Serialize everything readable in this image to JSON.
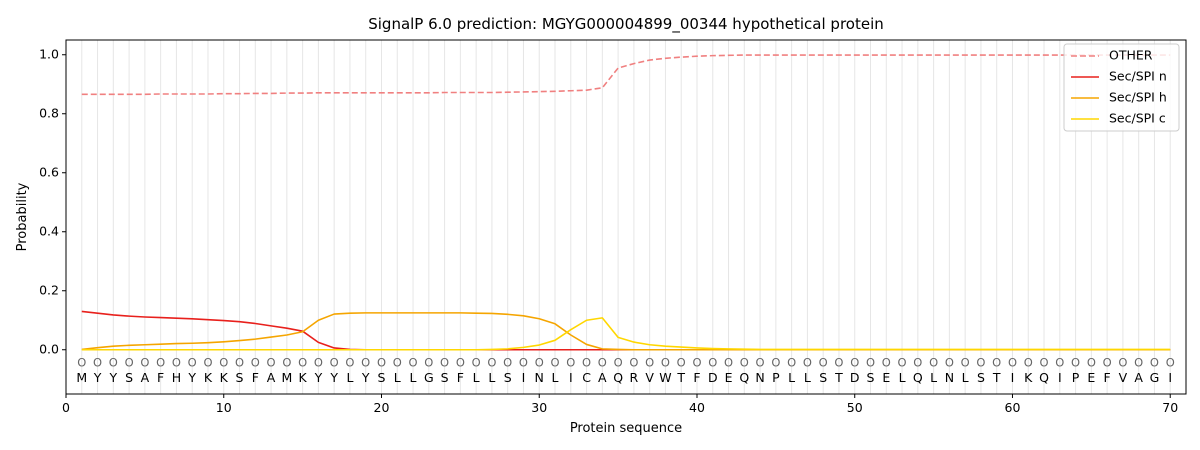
{
  "chart_data": {
    "type": "line",
    "title": "SignalP 6.0 prediction: MGYG000004899_00344 hypothetical protein",
    "xlabel": "Protein sequence",
    "ylabel": "Probability",
    "xlim": [
      0,
      71
    ],
    "ylim": [
      -0.15,
      1.05
    ],
    "xticks": [
      0,
      10,
      20,
      30,
      40,
      50,
      60,
      70
    ],
    "yticks": [
      0.0,
      0.2,
      0.4,
      0.6,
      0.8,
      1.0
    ],
    "ytick_labels": [
      "0.0",
      "0.2",
      "0.4",
      "0.6",
      "0.8",
      "1.0"
    ],
    "legend_position": "top-right",
    "sequence": [
      "M",
      "Y",
      "Y",
      "S",
      "A",
      "F",
      "H",
      "Y",
      "K",
      "K",
      "S",
      "F",
      "A",
      "M",
      "K",
      "Y",
      "Y",
      "L",
      "Y",
      "S",
      "L",
      "L",
      "G",
      "S",
      "F",
      "L",
      "L",
      "S",
      "I",
      "N",
      "L",
      "I",
      "C",
      "A",
      "Q",
      "R",
      "V",
      "W",
      "T",
      "F",
      "D",
      "E",
      "Q",
      "N",
      "P",
      "L",
      "L",
      "S",
      "T",
      "D",
      "S",
      "E",
      "L",
      "Q",
      "L",
      "N",
      "L",
      "S",
      "T",
      "I",
      "K",
      "Q",
      "I",
      "P",
      "E",
      "F",
      "V",
      "A",
      "G",
      "I"
    ],
    "region_marker": "O",
    "series": [
      {
        "name": "OTHER",
        "color": "#f08080",
        "dashed": true,
        "values": [
          0.866,
          0.866,
          0.866,
          0.866,
          0.866,
          0.867,
          0.867,
          0.867,
          0.867,
          0.868,
          0.868,
          0.869,
          0.869,
          0.87,
          0.87,
          0.871,
          0.871,
          0.871,
          0.871,
          0.871,
          0.871,
          0.871,
          0.871,
          0.872,
          0.872,
          0.872,
          0.872,
          0.873,
          0.874,
          0.875,
          0.876,
          0.878,
          0.88,
          0.888,
          0.955,
          0.97,
          0.982,
          0.988,
          0.992,
          0.995,
          0.997,
          0.998,
          0.999,
          0.999,
          0.999,
          0.999,
          0.999,
          0.999,
          0.999,
          0.999,
          0.999,
          0.999,
          0.999,
          0.999,
          0.999,
          0.999,
          0.999,
          0.999,
          0.999,
          0.999,
          0.999,
          0.999,
          0.999,
          0.999,
          0.999,
          0.999,
          0.999,
          0.999,
          0.999,
          0.999
        ]
      },
      {
        "name": "Sec/SPI n",
        "color": "#e8201c",
        "dashed": false,
        "values": [
          0.13,
          0.124,
          0.118,
          0.114,
          0.111,
          0.109,
          0.107,
          0.105,
          0.102,
          0.099,
          0.095,
          0.089,
          0.081,
          0.073,
          0.063,
          0.025,
          0.006,
          0.001,
          0,
          0,
          0,
          0,
          0,
          0,
          0,
          0,
          0,
          0,
          0,
          0,
          0,
          0,
          0,
          0,
          0,
          0,
          0,
          0,
          0,
          0,
          0,
          0,
          0,
          0,
          0,
          0,
          0,
          0,
          0,
          0,
          0,
          0,
          0,
          0,
          0,
          0,
          0,
          0,
          0,
          0,
          0,
          0,
          0,
          0,
          0,
          0,
          0,
          0,
          0,
          0
        ]
      },
      {
        "name": "Sec/SPI h",
        "color": "#f5a500",
        "dashed": false,
        "values": [
          0.001,
          0.007,
          0.012,
          0.015,
          0.017,
          0.019,
          0.021,
          0.022,
          0.024,
          0.027,
          0.031,
          0.036,
          0.043,
          0.05,
          0.061,
          0.1,
          0.121,
          0.124,
          0.125,
          0.125,
          0.125,
          0.125,
          0.125,
          0.125,
          0.125,
          0.124,
          0.123,
          0.12,
          0.115,
          0.105,
          0.088,
          0.05,
          0.018,
          0.003,
          0.001,
          0,
          0,
          0,
          0,
          0,
          0,
          0,
          0,
          0,
          0,
          0,
          0,
          0,
          0,
          0,
          0,
          0,
          0,
          0,
          0,
          0,
          0,
          0,
          0,
          0,
          0,
          0,
          0,
          0,
          0,
          0,
          0,
          0,
          0,
          0
        ]
      },
      {
        "name": "Sec/SPI c",
        "color": "#ffd700",
        "dashed": false,
        "values": [
          0,
          0,
          0,
          0,
          0,
          0,
          0,
          0,
          0,
          0,
          0,
          0,
          0,
          0,
          0,
          0,
          0,
          0,
          0,
          0,
          0,
          0,
          0,
          0,
          0,
          0,
          0.001,
          0.003,
          0.008,
          0.016,
          0.032,
          0.068,
          0.1,
          0.108,
          0.042,
          0.026,
          0.017,
          0.012,
          0.009,
          0.006,
          0.004,
          0.003,
          0.002,
          0.001,
          0.001,
          0.001,
          0.001,
          0.001,
          0.001,
          0.001,
          0.001,
          0.001,
          0.001,
          0.001,
          0.001,
          0.001,
          0.001,
          0.001,
          0.001,
          0.001,
          0.001,
          0.001,
          0.001,
          0.001,
          0.001,
          0.001,
          0.001,
          0.001,
          0.001,
          0.001
        ]
      }
    ]
  }
}
